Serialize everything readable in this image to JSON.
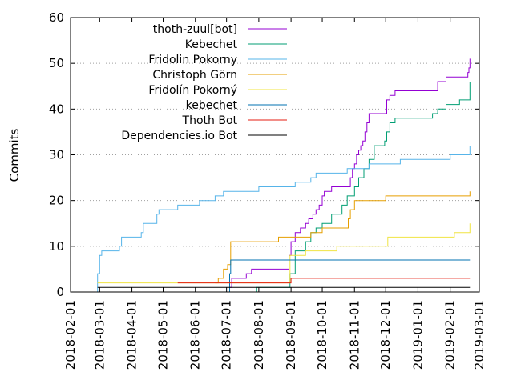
{
  "chart_data": {
    "type": "line",
    "title": "",
    "xlabel": "",
    "ylabel": "Commits",
    "xlim": [
      "2018-02-01",
      "2019-03-01"
    ],
    "ylim": [
      0,
      60
    ],
    "grid": "horizontal",
    "legend_position": "top-left",
    "x_ticks": [
      "2018-02-01",
      "2018-03-01",
      "2018-04-01",
      "2018-05-01",
      "2018-06-01",
      "2018-07-01",
      "2018-08-01",
      "2018-09-01",
      "2018-10-01",
      "2018-11-01",
      "2018-12-01",
      "2019-01-01",
      "2019-02-01",
      "2019-03-01"
    ],
    "y_ticks": [
      "0",
      "10",
      "20",
      "30",
      "40",
      "50",
      "60"
    ],
    "series": [
      {
        "name": "thoth-zuul[bot]",
        "color": "#9400d3",
        "x": [
          "2018-07-03",
          "2018-07-04",
          "2018-07-06",
          "2018-07-20",
          "2018-07-25",
          "2018-08-30",
          "2018-09-01",
          "2018-09-05",
          "2018-09-10",
          "2018-09-15",
          "2018-09-18",
          "2018-09-22",
          "2018-09-25",
          "2018-09-28",
          "2018-10-01",
          "2018-10-03",
          "2018-10-06",
          "2018-10-10",
          "2018-10-20",
          "2018-10-28",
          "2018-10-30",
          "2018-11-01",
          "2018-11-03",
          "2018-11-05",
          "2018-11-07",
          "2018-11-09",
          "2018-11-11",
          "2018-11-13",
          "2018-11-15",
          "2018-11-30",
          "2018-12-02",
          "2018-12-05",
          "2018-12-10",
          "2019-01-15",
          "2019-01-20",
          "2019-01-28",
          "2019-02-05",
          "2019-02-18",
          "2019-02-19",
          "2019-02-20"
        ],
        "values": [
          0,
          1,
          3,
          4,
          5,
          8,
          11,
          13,
          14,
          15,
          16,
          17,
          18,
          19,
          21,
          22,
          22,
          23,
          23,
          25,
          27,
          28,
          30,
          31,
          32,
          33,
          35,
          37,
          39,
          39,
          42,
          43,
          44,
          44,
          46,
          47,
          47,
          48,
          49,
          51
        ]
      },
      {
        "name": "Kebechet",
        "color": "#009e73",
        "x": [
          "2018-07-05",
          "2018-07-18",
          "2018-07-30",
          "2018-08-31",
          "2018-09-05",
          "2018-09-15",
          "2018-09-20",
          "2018-09-25",
          "2018-10-01",
          "2018-10-10",
          "2018-10-20",
          "2018-10-25",
          "2018-11-01",
          "2018-11-05",
          "2018-11-10",
          "2018-11-15",
          "2018-11-20",
          "2018-11-30",
          "2018-12-02",
          "2018-12-05",
          "2018-12-10",
          "2019-01-15",
          "2019-01-20",
          "2019-01-28",
          "2019-02-05",
          "2019-02-10",
          "2019-02-18",
          "2019-02-20"
        ],
        "values": [
          0,
          0,
          1,
          4,
          9,
          11,
          13,
          14,
          15,
          17,
          19,
          21,
          23,
          25,
          27,
          29,
          32,
          33,
          35,
          37,
          38,
          39,
          40,
          41,
          41,
          42,
          42,
          46
        ]
      },
      {
        "name": "Fridolin Pokorny",
        "color": "#56b4e9",
        "x": [
          "2018-02-26",
          "2018-02-27",
          "2018-03-01",
          "2018-03-03",
          "2018-03-20",
          "2018-03-22",
          "2018-04-10",
          "2018-04-12",
          "2018-04-25",
          "2018-04-27",
          "2018-05-15",
          "2018-06-01",
          "2018-06-05",
          "2018-06-15",
          "2018-06-20",
          "2018-06-28",
          "2018-08-01",
          "2018-08-30",
          "2018-09-05",
          "2018-09-20",
          "2018-09-25",
          "2018-10-10",
          "2018-10-25",
          "2018-11-15",
          "2018-12-01",
          "2018-12-15",
          "2019-01-15",
          "2019-02-01",
          "2019-02-05",
          "2019-02-19",
          "2019-02-20"
        ],
        "values": [
          0,
          4,
          8,
          9,
          10,
          12,
          13,
          15,
          17,
          18,
          19,
          19,
          20,
          20,
          21,
          22,
          23,
          23,
          24,
          25,
          26,
          26,
          27,
          28,
          28,
          29,
          29,
          30,
          30,
          30,
          32
        ]
      },
      {
        "name": "Christoph Görn",
        "color": "#e69f00",
        "x": [
          "2018-06-20",
          "2018-06-23",
          "2018-06-28",
          "2018-07-02",
          "2018-07-05",
          "2018-08-01",
          "2018-08-20",
          "2018-09-05",
          "2018-09-20",
          "2018-10-01",
          "2018-10-10",
          "2018-10-26",
          "2018-10-28",
          "2018-11-01",
          "2018-11-25",
          "2018-12-01",
          "2019-02-10",
          "2019-02-19",
          "2019-02-20"
        ],
        "values": [
          2,
          3,
          5,
          6,
          11,
          11,
          12,
          12,
          13,
          14,
          14,
          16,
          18,
          20,
          20,
          21,
          21,
          21,
          22
        ]
      },
      {
        "name": "Fridolín Pokorný",
        "color": "#f0e442",
        "x": [
          "2018-02-27",
          "2018-06-28",
          "2018-06-30",
          "2018-08-31",
          "2018-09-15",
          "2018-10-15",
          "2018-12-01",
          "2018-12-03",
          "2019-01-15",
          "2019-02-05",
          "2019-02-19",
          "2019-02-20"
        ],
        "values": [
          2,
          2,
          2,
          8,
          9,
          10,
          10,
          12,
          12,
          13,
          13,
          15
        ]
      },
      {
        "name": "kebechet",
        "color": "#0072b2",
        "x": [
          "2018-07-03",
          "2018-07-04",
          "2018-07-05",
          "2018-07-20",
          "2019-02-20"
        ],
        "values": [
          0,
          4,
          7,
          7,
          7
        ]
      },
      {
        "name": "Thoth Bot",
        "color": "#e51e10",
        "x": [
          "2018-05-15",
          "2018-07-01",
          "2018-07-05",
          "2018-08-30",
          "2018-09-01",
          "2019-02-20"
        ],
        "values": [
          2,
          2,
          2,
          2,
          3,
          3
        ]
      },
      {
        "name": "Dependencies.io Bot",
        "color": "#000000",
        "x": [
          "2018-02-27",
          "2019-02-20"
        ],
        "values": [
          1,
          1
        ]
      }
    ]
  }
}
